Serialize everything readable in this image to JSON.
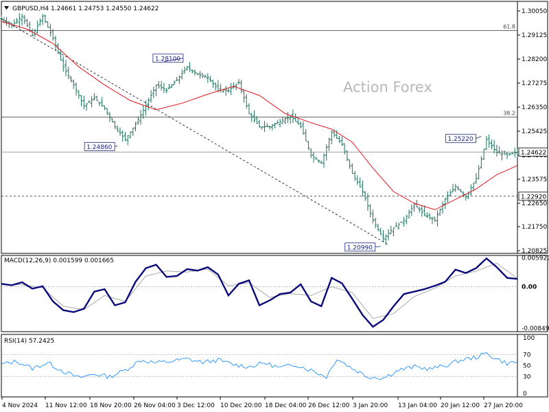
{
  "instrument_header": {
    "symbol": "GBPUSD,H4",
    "open": "1.24661",
    "high": "1.24753",
    "low": "1.24550",
    "close": "1.24622"
  },
  "watermark": "Action Forex",
  "colors": {
    "ma": "#e8141c",
    "macd": "#0a0a7a",
    "signal": "#a8a8a8",
    "rsi": "#1e90ff",
    "bars": "#1a6e5a",
    "grid": "#000000"
  },
  "chart_data": [
    {
      "type": "candlestick",
      "title": "GBPUSD,H4",
      "y_ticks": [
        "1.30050",
        "1.29125",
        "1.28200",
        "1.27275",
        "1.26350",
        "1.25425",
        "1.24500",
        "1.23575",
        "1.22650",
        "1.21750",
        "1.20825"
      ],
      "ylim": [
        1.2072,
        1.3042
      ],
      "x_ticks": [
        "4 Nov 2024",
        "11 Nov 12:00",
        "18 Nov 20:00",
        "26 Nov 04:00",
        "3 Dec 12:00",
        "10 Dec 20:00",
        "18 Dec 04:00",
        "26 Dec 12:00",
        "3 Jan 20:00",
        "13 Jan 04:00",
        "20 Jan 12:00",
        "27 Jan 20:00"
      ],
      "price_path": [
        [
          0,
          1.2975
        ],
        [
          4,
          1.295
        ],
        [
          8,
          1.2985
        ],
        [
          12,
          1.291
        ],
        [
          16,
          1.2985
        ],
        [
          20,
          1.29
        ],
        [
          24,
          1.279
        ],
        [
          28,
          1.272
        ],
        [
          32,
          1.264
        ],
        [
          36,
          1.267
        ],
        [
          40,
          1.263
        ],
        [
          44,
          1.256
        ],
        [
          48,
          1.251
        ],
        [
          52,
          1.257
        ],
        [
          56,
          1.264
        ],
        [
          60,
          1.272
        ],
        [
          64,
          1.27
        ],
        [
          68,
          1.274
        ],
        [
          72,
          1.279
        ],
        [
          76,
          1.276
        ],
        [
          80,
          1.275
        ],
        [
          84,
          1.27
        ],
        [
          88,
          1.27
        ],
        [
          92,
          1.273
        ],
        [
          96,
          1.261
        ],
        [
          100,
          1.256
        ],
        [
          104,
          1.256
        ],
        [
          108,
          1.258
        ],
        [
          112,
          1.26
        ],
        [
          116,
          1.256
        ],
        [
          120,
          1.245
        ],
        [
          124,
          1.242
        ],
        [
          128,
          1.254
        ],
        [
          132,
          1.249
        ],
        [
          136,
          1.238
        ],
        [
          140,
          1.231
        ],
        [
          144,
          1.22
        ],
        [
          148,
          1.213
        ],
        [
          152,
          1.217
        ],
        [
          156,
          1.22
        ],
        [
          160,
          1.226
        ],
        [
          164,
          1.222
        ],
        [
          168,
          1.22
        ],
        [
          172,
          1.228
        ],
        [
          176,
          1.233
        ],
        [
          180,
          1.229
        ],
        [
          184,
          1.236
        ],
        [
          188,
          1.251
        ],
        [
          192,
          1.246
        ],
        [
          196,
          1.245
        ],
        [
          200,
          1.2462
        ]
      ],
      "moving_average": [
        [
          0,
          1.2965
        ],
        [
          10,
          1.2935
        ],
        [
          20,
          1.288
        ],
        [
          30,
          1.279
        ],
        [
          40,
          1.272
        ],
        [
          50,
          1.266
        ],
        [
          60,
          1.2625
        ],
        [
          70,
          1.265
        ],
        [
          80,
          1.2685
        ],
        [
          90,
          1.2715
        ],
        [
          100,
          1.268
        ],
        [
          110,
          1.261
        ],
        [
          120,
          1.2575
        ],
        [
          128,
          1.255
        ],
        [
          136,
          1.25
        ],
        [
          144,
          1.24
        ],
        [
          152,
          1.231
        ],
        [
          160,
          1.2265
        ],
        [
          168,
          1.224
        ],
        [
          176,
          1.228
        ],
        [
          184,
          1.232
        ],
        [
          192,
          1.2375
        ],
        [
          200,
          1.241
        ]
      ],
      "horizontal_levels": [
        {
          "label": "61.8",
          "value": 1.293,
          "style": "solid"
        },
        {
          "label": "38.2",
          "value": 1.2597,
          "style": "solid"
        },
        {
          "label": "",
          "value": 1.2462,
          "style": "solid"
        },
        {
          "label": "1.22920",
          "value": 1.2292,
          "style": "dashed"
        }
      ],
      "trendline": {
        "from": [
          0,
          1.2975
        ],
        "to": [
          150,
          1.2105
        ]
      },
      "annotations": [
        {
          "text": "1.28100",
          "x": 63,
          "y": 1.281
        },
        {
          "text": "1.24860",
          "x": 45,
          "y": 1.2486
        },
        {
          "text": "1.25220",
          "x": 186,
          "y": 1.2522
        },
        {
          "text": "1.20990",
          "x": 147,
          "y": 1.2099
        }
      ],
      "current_price_label": "1.24622"
    },
    {
      "type": "line",
      "title": "MACD(12,26,9) 0.001599 0.001665",
      "y_ticks": [
        "0.005921",
        "0.00",
        "-0.00849"
      ],
      "ylim": [
        -0.0092,
        0.0064
      ],
      "series": [
        {
          "values": [
            [
              0,
              0.0006
            ],
            [
              4,
              0.0003
            ],
            [
              8,
              0.0009
            ],
            [
              12,
              -0.0004
            ],
            [
              16,
              0.0001
            ],
            [
              20,
              -0.003
            ],
            [
              24,
              -0.0048
            ],
            [
              28,
              -0.0052
            ],
            [
              32,
              -0.0045
            ],
            [
              36,
              -0.001
            ],
            [
              40,
              -0.0005
            ],
            [
              44,
              -0.0038
            ],
            [
              48,
              -0.0032
            ],
            [
              52,
              0.001
            ],
            [
              56,
              0.0038
            ],
            [
              60,
              0.0045
            ],
            [
              64,
              0.002
            ],
            [
              68,
              0.0022
            ],
            [
              72,
              0.0036
            ],
            [
              76,
              0.0033
            ],
            [
              80,
              0.004
            ],
            [
              84,
              0.0025
            ],
            [
              88,
              -0.0018
            ],
            [
              92,
              0.0006
            ],
            [
              96,
              0.0013
            ],
            [
              100,
              -0.0038
            ],
            [
              104,
              -0.0028
            ],
            [
              108,
              -0.0015
            ],
            [
              112,
              -0.0012
            ],
            [
              116,
              0.0005
            ],
            [
              120,
              -0.003
            ],
            [
              124,
              -0.004
            ],
            [
              128,
              0.0018
            ],
            [
              132,
              0.0007
            ],
            [
              136,
              -0.0025
            ],
            [
              140,
              -0.0058
            ],
            [
              144,
              -0.0082
            ],
            [
              148,
              -0.0068
            ],
            [
              152,
              -0.004
            ],
            [
              156,
              -0.0015
            ],
            [
              160,
              -0.001
            ],
            [
              164,
              -0.0005
            ],
            [
              168,
              0.0002
            ],
            [
              172,
              0.001
            ],
            [
              176,
              0.0035
            ],
            [
              180,
              0.0028
            ],
            [
              184,
              0.0038
            ],
            [
              188,
              0.0058
            ],
            [
              192,
              0.004
            ],
            [
              196,
              0.0018
            ],
            [
              200,
              0.0016
            ]
          ]
        },
        {
          "values": [
            [
              0,
              0.0005
            ],
            [
              8,
              0.0004
            ],
            [
              16,
              -0.0002
            ],
            [
              24,
              -0.004
            ],
            [
              32,
              -0.0047
            ],
            [
              40,
              -0.0018
            ],
            [
              48,
              -0.003
            ],
            [
              56,
              0.0022
            ],
            [
              64,
              0.0032
            ],
            [
              72,
              0.003
            ],
            [
              80,
              0.0036
            ],
            [
              88,
              0.0002
            ],
            [
              96,
              0.0008
            ],
            [
              104,
              -0.0022
            ],
            [
              112,
              -0.0014
            ],
            [
              120,
              -0.0018
            ],
            [
              128,
              0.0
            ],
            [
              136,
              -0.0012
            ],
            [
              144,
              -0.0065
            ],
            [
              152,
              -0.0055
            ],
            [
              160,
              -0.002
            ],
            [
              168,
              -0.0003
            ],
            [
              176,
              0.0022
            ],
            [
              184,
              0.0032
            ],
            [
              192,
              0.0048
            ],
            [
              200,
              0.0017
            ]
          ]
        }
      ]
    },
    {
      "type": "line",
      "title": "RSI(14) 57.2425",
      "y_ticks": [
        "100",
        "70",
        "50",
        "30",
        "0"
      ],
      "ylim": [
        0,
        100
      ],
      "levels": [
        70,
        30
      ],
      "series": [
        {
          "values": [
            [
              0,
              52
            ],
            [
              6,
              58
            ],
            [
              12,
              45
            ],
            [
              18,
              55
            ],
            [
              24,
              40
            ],
            [
              30,
              28
            ],
            [
              36,
              35
            ],
            [
              42,
              30
            ],
            [
              48,
              42
            ],
            [
              54,
              60
            ],
            [
              60,
              55
            ],
            [
              66,
              58
            ],
            [
              72,
              62
            ],
            [
              78,
              56
            ],
            [
              84,
              60
            ],
            [
              90,
              52
            ],
            [
              96,
              48
            ],
            [
              102,
              55
            ],
            [
              108,
              46
            ],
            [
              114,
              52
            ],
            [
              120,
              42
            ],
            [
              126,
              30
            ],
            [
              130,
              63
            ],
            [
              136,
              45
            ],
            [
              142,
              30
            ],
            [
              148,
              28
            ],
            [
              154,
              42
            ],
            [
              160,
              48
            ],
            [
              166,
              44
            ],
            [
              172,
              50
            ],
            [
              178,
              60
            ],
            [
              184,
              65
            ],
            [
              188,
              72
            ],
            [
              192,
              62
            ],
            [
              196,
              54
            ],
            [
              200,
              57
            ]
          ]
        }
      ]
    }
  ]
}
